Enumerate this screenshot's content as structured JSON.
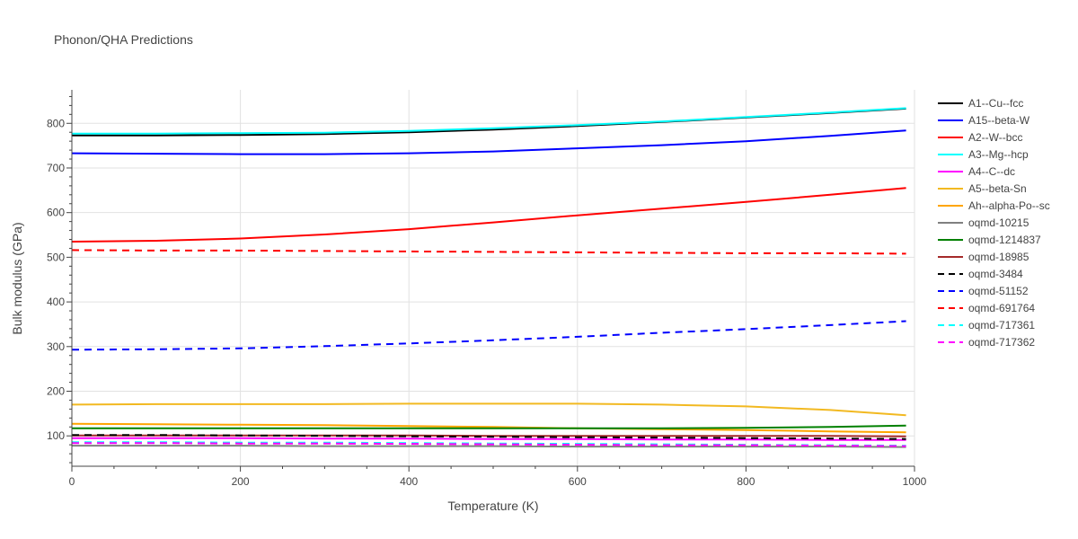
{
  "chart_data": {
    "type": "line",
    "title": "Phonon/QHA Predictions",
    "xlabel": "Temperature (K)",
    "ylabel": "Bulk modulus (GPa)",
    "xlim": [
      0,
      1000
    ],
    "ylim": [
      32,
      875
    ],
    "x_ticks": [
      0,
      200,
      400,
      600,
      800,
      1000
    ],
    "y_ticks": [
      100,
      200,
      300,
      400,
      500,
      600,
      700,
      800
    ],
    "grid": true,
    "legend_position": "right",
    "x": [
      0,
      100,
      200,
      300,
      400,
      500,
      600,
      700,
      800,
      900,
      990
    ],
    "series": [
      {
        "name": "A1--Cu--fcc",
        "color": "#000000",
        "dash": "solid",
        "values": [
          773,
          773,
          774,
          776,
          780,
          786,
          794,
          803,
          813,
          823,
          833
        ]
      },
      {
        "name": "A15--beta-W",
        "color": "#0000ff",
        "dash": "solid",
        "values": [
          733,
          732,
          731,
          731,
          733,
          737,
          744,
          751,
          760,
          772,
          784
        ]
      },
      {
        "name": "A2--W--bcc",
        "color": "#ff0000",
        "dash": "solid",
        "values": [
          535,
          537,
          542,
          551,
          563,
          578,
          594,
          609,
          624,
          640,
          655
        ]
      },
      {
        "name": "A3--Mg--hcp",
        "color": "#00ffff",
        "dash": "solid",
        "values": [
          777,
          777,
          778,
          779,
          783,
          789,
          796,
          804,
          814,
          824,
          834
        ]
      },
      {
        "name": "A4--C--dc",
        "color": "#ff00ff",
        "dash": "solid",
        "values": [
          95,
          95,
          95,
          94,
          94,
          93,
          93,
          92,
          92,
          91,
          91
        ]
      },
      {
        "name": "A5--beta-Sn",
        "color": "#f2b921",
        "dash": "solid",
        "values": [
          170,
          171,
          171,
          171,
          172,
          172,
          172,
          170,
          166,
          158,
          146
        ]
      },
      {
        "name": "Ah--alpha-Po--sc",
        "color": "#ffa500",
        "dash": "solid",
        "values": [
          127,
          126,
          125,
          124,
          122,
          120,
          117,
          115,
          113,
          110,
          108
        ]
      },
      {
        "name": "oqmd-10215",
        "color": "#808080",
        "dash": "solid",
        "values": [
          78,
          78,
          78,
          77,
          77,
          77,
          76,
          76,
          76,
          76,
          75
        ]
      },
      {
        "name": "oqmd-1214837",
        "color": "#008000",
        "dash": "solid",
        "values": [
          117,
          117,
          117,
          117,
          117,
          117,
          117,
          117,
          118,
          120,
          123
        ]
      },
      {
        "name": "oqmd-18985",
        "color": "#a52a2a",
        "dash": "solid",
        "values": [
          101,
          101,
          101,
          101,
          101,
          100,
          100,
          100,
          100,
          100,
          99
        ]
      },
      {
        "name": "oqmd-3484",
        "color": "#000000",
        "dash": "dash",
        "values": [
          102,
          102,
          101,
          100,
          99,
          98,
          97,
          96,
          95,
          94,
          93
        ]
      },
      {
        "name": "oqmd-51152",
        "color": "#0000ff",
        "dash": "dash",
        "values": [
          293,
          294,
          296,
          301,
          307,
          314,
          322,
          331,
          339,
          348,
          357
        ]
      },
      {
        "name": "oqmd-691764",
        "color": "#ff0000",
        "dash": "dash",
        "values": [
          516,
          515,
          515,
          514,
          513,
          512,
          511,
          510,
          509,
          509,
          508
        ]
      },
      {
        "name": "oqmd-717361",
        "color": "#00ffff",
        "dash": "dash",
        "values": [
          86,
          86,
          85,
          85,
          84,
          83,
          82,
          81,
          80,
          79,
          78
        ]
      },
      {
        "name": "oqmd-717362",
        "color": "#ff00ff",
        "dash": "dash",
        "values": [
          84,
          84,
          83,
          83,
          82,
          81,
          80,
          79,
          79,
          78,
          77
        ]
      }
    ]
  }
}
